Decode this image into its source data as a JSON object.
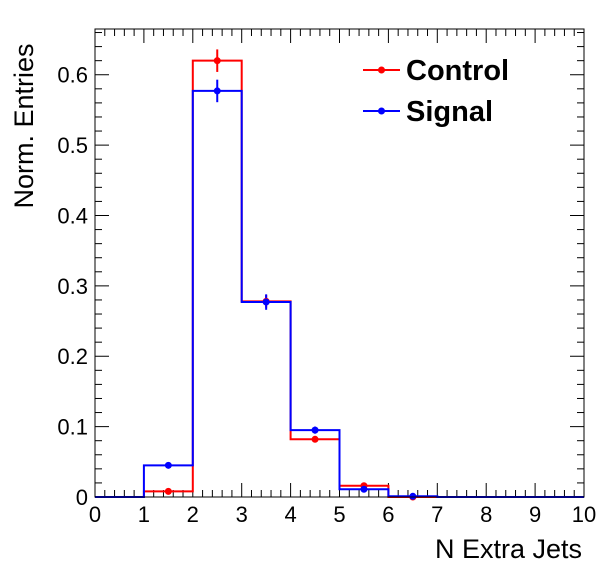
{
  "chart_data": {
    "type": "histogram",
    "title": "",
    "xlabel": "N Extra Jets",
    "ylabel": "Norm. Entries",
    "xlim": [
      0,
      10
    ],
    "ylim": [
      0,
      0.665
    ],
    "x_ticks": [
      "0",
      "1",
      "2",
      "3",
      "4",
      "5",
      "6",
      "7",
      "8",
      "9",
      "10"
    ],
    "y_ticks": [
      "0",
      "0.1",
      "0.2",
      "0.3",
      "0.4",
      "0.5",
      "0.6"
    ],
    "bin_edges": [
      0,
      1,
      2,
      3,
      4,
      5,
      6,
      7,
      8,
      9,
      10
    ],
    "legend_position": "top-right",
    "grid": false,
    "series": [
      {
        "name": "Control",
        "color": "#ff0000",
        "values": [
          0.0,
          0.008,
          0.62,
          0.278,
          0.082,
          0.016,
          0.0,
          0.0,
          0.0,
          0.0
        ],
        "errors": [
          0.0,
          0.002,
          0.016,
          0.009,
          0.004,
          0.002,
          0.0,
          0.0,
          0.0,
          0.0
        ]
      },
      {
        "name": "Signal",
        "color": "#0000ff",
        "values": [
          0.0,
          0.045,
          0.577,
          0.277,
          0.095,
          0.011,
          0.001,
          0.0,
          0.0,
          0.0
        ],
        "errors": [
          0.0,
          0.003,
          0.016,
          0.011,
          0.005,
          0.002,
          0.0,
          0.0,
          0.0,
          0.0
        ]
      }
    ]
  }
}
